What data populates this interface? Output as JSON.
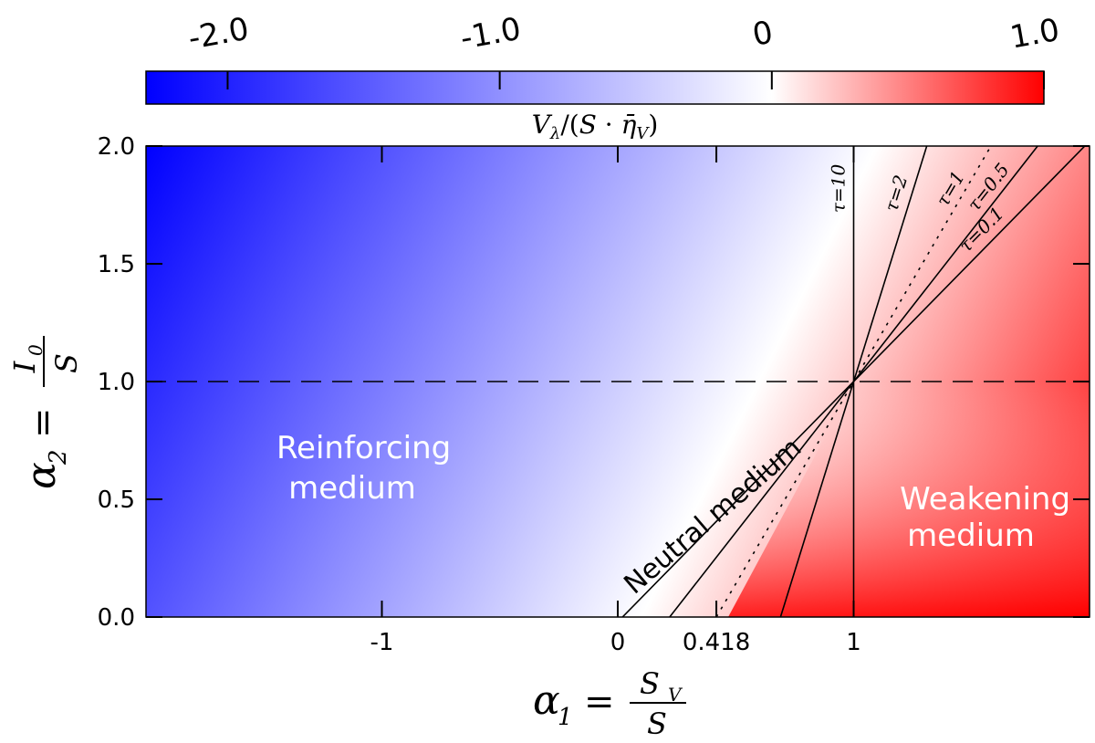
{
  "colors": {
    "negative_end": "#0000ff",
    "zero": "#ffffff",
    "positive_end": "#ff0000",
    "lines": "#000000"
  },
  "colorbar": {
    "ticks": [
      {
        "value": -2.0,
        "label": "-2.0"
      },
      {
        "value": -1.0,
        "label": "-1.0"
      },
      {
        "value": 0,
        "label": "0"
      },
      {
        "value": 1.0,
        "label": "1.0"
      }
    ],
    "range": [
      -2.3,
      1.0
    ],
    "label": "Vλ/(S·η̄V)"
  },
  "axes": {
    "xlabel": "α1 = SV / S",
    "ylabel": "α2 = I0 / S",
    "xlim": [
      -2.0,
      2.0
    ],
    "ylim": [
      0.0,
      2.0
    ],
    "xticks": [
      {
        "value": -1,
        "label": "-1"
      },
      {
        "value": 0,
        "label": "0"
      },
      {
        "value": 0.418,
        "label": "0.418"
      },
      {
        "value": 1,
        "label": "1"
      }
    ],
    "yticks": [
      {
        "value": 0.0,
        "label": "0.0"
      },
      {
        "value": 0.5,
        "label": "0.5"
      },
      {
        "value": 1.0,
        "label": "1.0"
      },
      {
        "value": 1.5,
        "label": "1.5"
      },
      {
        "value": 2.0,
        "label": "2.0"
      }
    ]
  },
  "regions": {
    "reinforcing": [
      "Reinforcing",
      "medium"
    ],
    "neutral": "Neutral medium",
    "weakening": [
      "Weakening",
      "medium"
    ]
  },
  "chart_data": {
    "type": "heatmap",
    "title": "",
    "xlabel": "α1 = SV / S",
    "ylabel": "α2 = I0 / S",
    "colorbar_label": "Vλ/(S·η̄V)",
    "xlim": [
      -2.0,
      2.0
    ],
    "ylim": [
      0.0,
      2.0
    ],
    "grid": false,
    "reference_lines": [
      {
        "kind": "horizontal",
        "y": 1.0,
        "style": "dashed"
      }
    ],
    "series": [
      {
        "name": "τ=10",
        "style": "solid",
        "points": [
          [
            1.0,
            0.0
          ],
          [
            1.0,
            2.0
          ]
        ]
      },
      {
        "name": "τ=2",
        "style": "solid",
        "points": [
          [
            0.69,
            0.0
          ],
          [
            1.31,
            2.0
          ]
        ]
      },
      {
        "name": "τ=1",
        "style": "dotted",
        "points": [
          [
            0.418,
            0.0
          ],
          [
            1.582,
            2.0
          ]
        ]
      },
      {
        "name": "τ=0.5",
        "style": "solid",
        "points": [
          [
            0.22,
            0.0
          ],
          [
            1.78,
            2.0
          ]
        ]
      },
      {
        "name": "τ=0.1",
        "style": "solid",
        "points": [
          [
            0.02,
            0.0
          ],
          [
            1.98,
            2.0
          ]
        ]
      }
    ]
  }
}
